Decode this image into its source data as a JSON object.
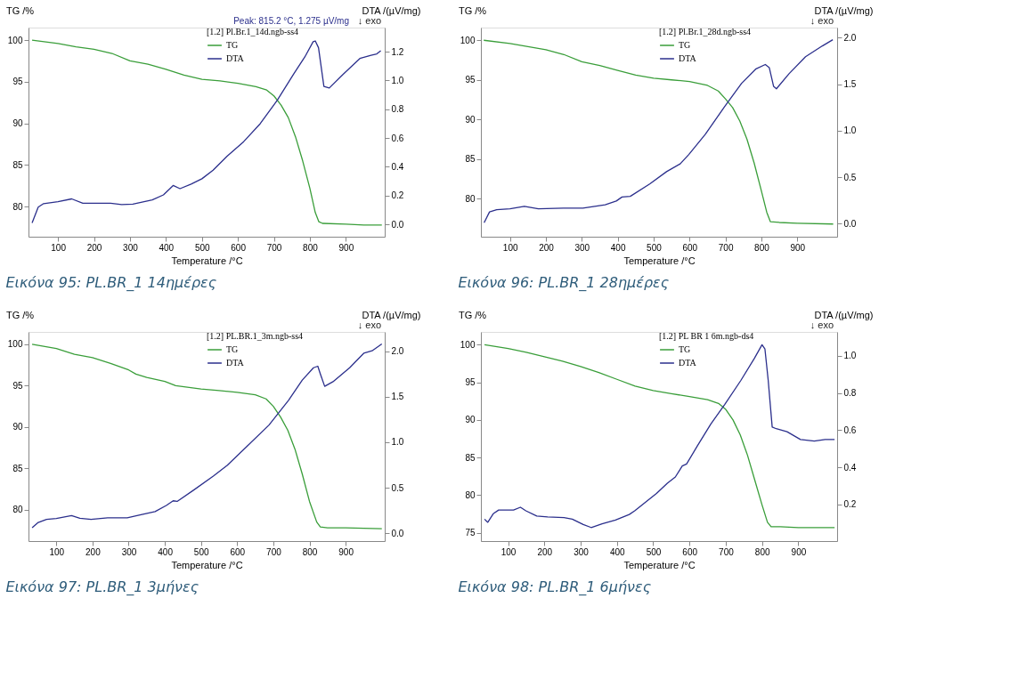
{
  "chart_data": [
    {
      "type": "line",
      "title": "Εικόνα 95: PL.BR_1  14ημέρες",
      "xlabel": "Temperature /°C",
      "ylabel": "TG /%",
      "y2label": "DTA /(µV/mg)",
      "legend_title": "[1.2] Pl.Br.1_14d.ngb-ss4",
      "legend": "top right",
      "grid": false,
      "line_style": "solid",
      "marker": "none",
      "xlim": [
        18,
        1008
      ],
      "xticks": [
        100,
        200,
        300,
        400,
        500,
        600,
        700,
        800,
        900
      ],
      "ylim": [
        76.4,
        101.5
      ],
      "yticks": [
        80,
        85,
        90,
        95,
        100
      ],
      "y2lim": [
        -0.086,
        1.368
      ],
      "y2ticks": [
        {
          "value": 0,
          "label": "0.0"
        },
        {
          "value": 0.2,
          "label": "0.2"
        },
        {
          "value": 0.4,
          "label": "0.4"
        },
        {
          "value": 0.6,
          "label": "0.6"
        },
        {
          "value": 0.8,
          "label": "0.8"
        },
        {
          "value": 1,
          "label": "1.0"
        },
        {
          "value": 1.2,
          "label": "1.2"
        }
      ],
      "annotations": [
        "↓ exo",
        "Peak: 815.2 °C, 1.275 µV/mg"
      ],
      "series": [
        {
          "name": "TG",
          "color": "#3a9e3a",
          "x": [
            28,
            100,
            150,
            200,
            250,
            300,
            350,
            400,
            450,
            500,
            550,
            600,
            650,
            680,
            700,
            720,
            740,
            760,
            780,
            800,
            815,
            825,
            835,
            900,
            950,
            1000
          ],
          "values": [
            100,
            99.6,
            99.2,
            98.9,
            98.4,
            97.5,
            97.1,
            96.5,
            95.8,
            95.3,
            95.1,
            94.8,
            94.4,
            94.0,
            93.3,
            92.2,
            90.7,
            88.4,
            85.5,
            82.2,
            79.3,
            78.2,
            78.0,
            77.9,
            77.8,
            77.8
          ]
        },
        {
          "name": "DTA",
          "color": "#2b2f8c",
          "axis": "y2",
          "x": [
            28,
            45,
            60,
            100,
            138,
            169,
            200,
            246,
            277,
            308,
            362,
            393,
            420,
            439,
            470,
            500,
            531,
            570,
            616,
            662,
            709,
            755,
            786,
            809,
            815,
            824,
            839,
            854,
            893,
            939,
            970,
            986,
            997
          ],
          "values": [
            0.01,
            0.12,
            0.144,
            0.157,
            0.177,
            0.147,
            0.147,
            0.147,
            0.138,
            0.14,
            0.17,
            0.205,
            0.27,
            0.248,
            0.28,
            0.317,
            0.377,
            0.474,
            0.575,
            0.7,
            0.862,
            1.045,
            1.164,
            1.27,
            1.275,
            1.228,
            0.959,
            0.948,
            1.045,
            1.153,
            1.175,
            1.185,
            1.207
          ]
        }
      ]
    },
    {
      "type": "line",
      "title": "Εικόνα 96: PL.BR_1 28ημέρες",
      "xlabel": "Temperature /°C",
      "ylabel": "TG /%",
      "y2label": "DTA /(µV/mg)",
      "legend_title": "[1.2] Pl.Br.1_28d.ngb-ss4",
      "legend": "top right",
      "grid": false,
      "line_style": "solid",
      "marker": "none",
      "xlim": [
        19,
        1011
      ],
      "xticks": [
        100,
        200,
        300,
        400,
        500,
        600,
        700,
        800,
        900
      ],
      "ylim": [
        75.2,
        101.6
      ],
      "yticks": [
        80,
        85,
        90,
        95,
        100
      ],
      "y2lim": [
        -0.14,
        2.11
      ],
      "y2ticks": [
        {
          "value": 0,
          "label": "0.0"
        },
        {
          "value": 0.5,
          "label": "0.5"
        },
        {
          "value": 1,
          "label": "1.0"
        },
        {
          "value": 1.5,
          "label": "1.5"
        },
        {
          "value": 2,
          "label": "2.0"
        }
      ],
      "annotations": [
        "↓ exo"
      ],
      "series": [
        {
          "name": "TG",
          "color": "#3a9e3a",
          "x": [
            27,
            100,
            150,
            200,
            250,
            300,
            350,
            400,
            450,
            500,
            550,
            600,
            650,
            680,
            700,
            720,
            740,
            760,
            780,
            800,
            815,
            825,
            850,
            900,
            1000
          ],
          "values": [
            100,
            99.6,
            99.2,
            98.8,
            98.2,
            97.3,
            96.8,
            96.2,
            95.6,
            95.2,
            95.0,
            94.8,
            94.3,
            93.6,
            92.6,
            91.5,
            89.8,
            87.5,
            84.5,
            81.0,
            78.3,
            77.1,
            77.0,
            76.9,
            76.8
          ]
        },
        {
          "name": "DTA",
          "color": "#2b2f8c",
          "axis": "y2",
          "x": [
            28,
            43,
            63,
            100,
            140,
            179,
            249,
            303,
            365,
            396,
            412,
            435,
            489,
            536,
            574,
            598,
            644,
            698,
            745,
            784,
            811,
            822,
            834,
            842,
            877,
            923,
            970,
            999
          ],
          "values": [
            0.01,
            0.127,
            0.15,
            0.16,
            0.187,
            0.16,
            0.167,
            0.167,
            0.204,
            0.244,
            0.287,
            0.294,
            0.427,
            0.56,
            0.644,
            0.745,
            0.962,
            1.262,
            1.51,
            1.663,
            1.713,
            1.68,
            1.479,
            1.452,
            1.613,
            1.796,
            1.913,
            1.98
          ]
        }
      ]
    },
    {
      "type": "line",
      "title": "Εικόνα 97: PL.BR_1 3μήνες",
      "xlabel": "Temperature /°C",
      "ylabel": "TG /%",
      "y2label": "DTA /(µV/mg)",
      "legend_title": "[1.2] PL.BR.1_3m.ngb-ss4",
      "legend": "top right",
      "grid": false,
      "line_style": "solid",
      "marker": "none",
      "xlim": [
        23,
        1008
      ],
      "xticks": [
        100,
        200,
        300,
        400,
        500,
        600,
        700,
        800,
        900
      ],
      "ylim": [
        76.2,
        101.5
      ],
      "yticks": [
        80,
        85,
        90,
        95,
        100
      ],
      "y2lim": [
        -0.085,
        2.21
      ],
      "y2ticks": [
        {
          "value": 0,
          "label": "0.0"
        },
        {
          "value": 0.5,
          "label": "0.5"
        },
        {
          "value": 1,
          "label": "1.0"
        },
        {
          "value": 1.5,
          "label": "1.5"
        },
        {
          "value": 2,
          "label": "2.0"
        }
      ],
      "annotations": [
        "↓ exo"
      ],
      "series": [
        {
          "name": "TG",
          "color": "#3a9e3a",
          "x": [
            33,
            100,
            150,
            200,
            250,
            300,
            320,
            350,
            400,
            430,
            500,
            550,
            600,
            650,
            680,
            700,
            720,
            740,
            760,
            780,
            800,
            820,
            830,
            850,
            900,
            1000
          ],
          "values": [
            100,
            99.5,
            98.8,
            98.4,
            97.7,
            96.9,
            96.4,
            96.0,
            95.5,
            95.0,
            94.6,
            94.4,
            94.2,
            93.9,
            93.4,
            92.5,
            91.2,
            89.6,
            87.3,
            84.3,
            81.0,
            78.5,
            77.9,
            77.8,
            77.8,
            77.7
          ]
        },
        {
          "name": "DTA",
          "color": "#2b2f8c",
          "axis": "y2",
          "x": [
            33,
            50,
            73,
            100,
            142,
            165,
            196,
            242,
            296,
            334,
            373,
            404,
            423,
            434,
            480,
            534,
            573,
            626,
            688,
            742,
            780,
            811,
            823,
            830,
            842,
            865,
            911,
            950,
            973,
            1000
          ],
          "values": [
            0.061,
            0.119,
            0.153,
            0.163,
            0.194,
            0.166,
            0.153,
            0.17,
            0.17,
            0.204,
            0.238,
            0.306,
            0.357,
            0.35,
            0.475,
            0.628,
            0.747,
            0.951,
            1.188,
            1.46,
            1.681,
            1.817,
            1.834,
            1.749,
            1.613,
            1.664,
            1.817,
            1.976,
            2.003,
            2.078
          ]
        }
      ]
    },
    {
      "type": "line",
      "title": "Εικόνα 98: PL.BR_1 6μήνες",
      "xlabel": "Temperature /°C",
      "ylabel": "TG /%",
      "y2label": "DTA /(µV/mg)",
      "legend_title": "[1.2] PL  BR  1  6m.ngb-ds4",
      "legend": "top right",
      "grid": false,
      "line_style": "solid",
      "marker": "none",
      "xlim": [
        25,
        1007
      ],
      "xticks": [
        100,
        200,
        300,
        400,
        500,
        600,
        700,
        800,
        900
      ],
      "ylim": [
        73.9,
        101.7
      ],
      "yticks": [
        75,
        80,
        85,
        90,
        95,
        100
      ],
      "y2lim": [
        0.003,
        1.129
      ],
      "y2ticks": [
        {
          "value": 0.2,
          "label": "0.2"
        },
        {
          "value": 0.4,
          "label": "0.4"
        },
        {
          "value": 0.6,
          "label": "0.6"
        },
        {
          "value": 0.8,
          "label": "0.8"
        },
        {
          "value": 1,
          "label": "1.0"
        }
      ],
      "annotations": [
        "↓ exo"
      ],
      "series": [
        {
          "name": "TG",
          "color": "#3a9e3a",
          "x": [
            35,
            100,
            150,
            200,
            250,
            300,
            350,
            400,
            450,
            500,
            550,
            600,
            650,
            680,
            700,
            720,
            740,
            760,
            780,
            800,
            815,
            825,
            850,
            900,
            1000
          ],
          "values": [
            100,
            99.5,
            99.0,
            98.4,
            97.8,
            97.1,
            96.3,
            95.4,
            94.5,
            93.9,
            93.5,
            93.1,
            92.7,
            92.2,
            91.4,
            90.0,
            88.0,
            85.3,
            82.0,
            78.7,
            76.4,
            75.8,
            75.8,
            75.7,
            75.7
          ]
        },
        {
          "name": "DTA",
          "color": "#2b2f8c",
          "axis": "y2",
          "x": [
            35,
            44,
            59,
            74,
            100,
            115,
            134,
            149,
            179,
            209,
            254,
            277,
            307,
            329,
            359,
            396,
            434,
            449,
            479,
            509,
            539,
            561,
            580,
            592,
            622,
            659,
            697,
            742,
            779,
            800,
            808,
            817,
            828,
            839,
            869,
            906,
            944,
            974,
            1000
          ],
          "values": [
            0.121,
            0.104,
            0.15,
            0.17,
            0.17,
            0.17,
            0.185,
            0.166,
            0.138,
            0.133,
            0.129,
            0.121,
            0.092,
            0.076,
            0.096,
            0.116,
            0.146,
            0.166,
            0.213,
            0.259,
            0.314,
            0.348,
            0.407,
            0.418,
            0.516,
            0.634,
            0.738,
            0.869,
            0.987,
            1.06,
            1.037,
            0.869,
            0.617,
            0.608,
            0.592,
            0.55,
            0.541,
            0.55,
            0.55
          ]
        }
      ]
    }
  ]
}
